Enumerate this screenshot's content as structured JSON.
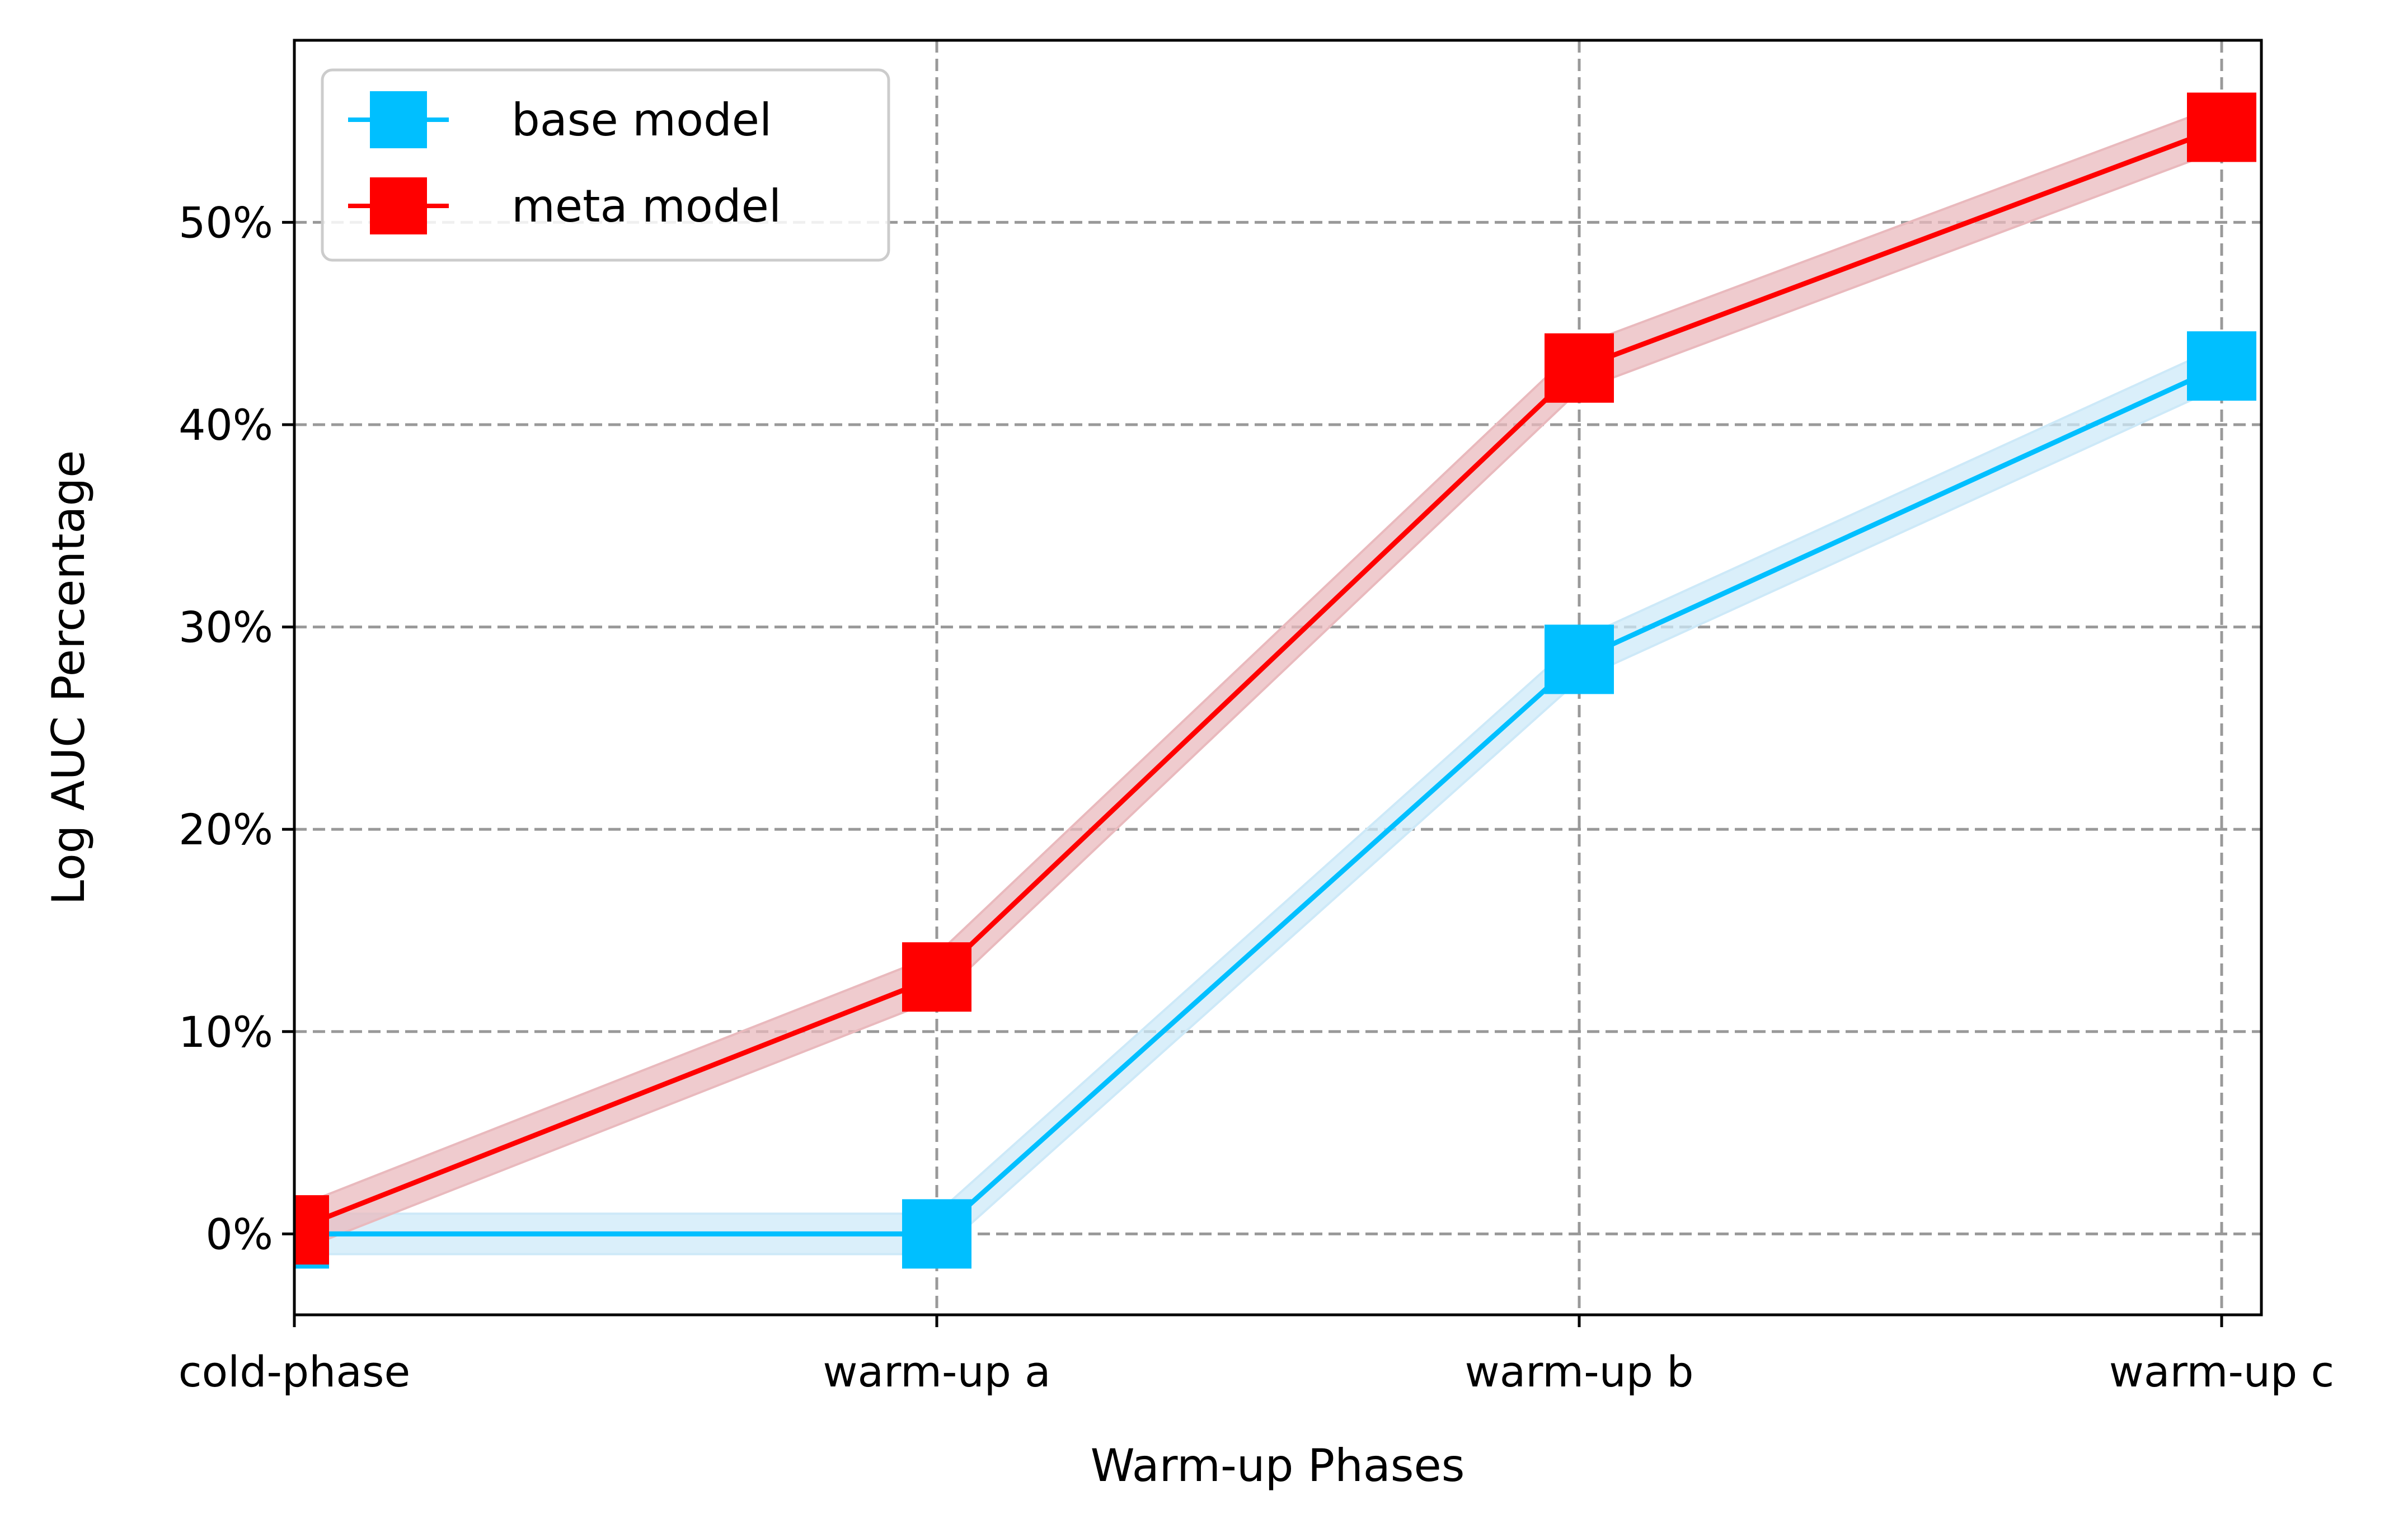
{
  "chart_data": {
    "type": "line",
    "title": "",
    "xlabel": "Warm-up Phases",
    "ylabel": "Log AUC Percentage",
    "categories": [
      "cold-phase",
      "warm-up a",
      "warm-up b",
      "warm-up c"
    ],
    "ylim": [
      -4,
      59
    ],
    "yticks": [
      0,
      10,
      20,
      30,
      40,
      50
    ],
    "ytick_labels": [
      "0%",
      "10%",
      "20%",
      "30%",
      "40%",
      "50%"
    ],
    "grid": true,
    "legend_position": "top-left",
    "series": [
      {
        "name": "base model",
        "color": "#00bfff",
        "band_color": "#cde9f8",
        "marker": "square",
        "values": [
          0,
          0,
          28.4,
          42.9
        ],
        "band": [
          1,
          1,
          1,
          1
        ]
      },
      {
        "name": "meta model",
        "color": "#ff0000",
        "band_color": "#e9b9bd",
        "marker": "square",
        "values": [
          0.2,
          12.7,
          42.8,
          54.7
        ],
        "band": [
          1.1,
          1.1,
          1.1,
          1.1
        ]
      }
    ]
  }
}
